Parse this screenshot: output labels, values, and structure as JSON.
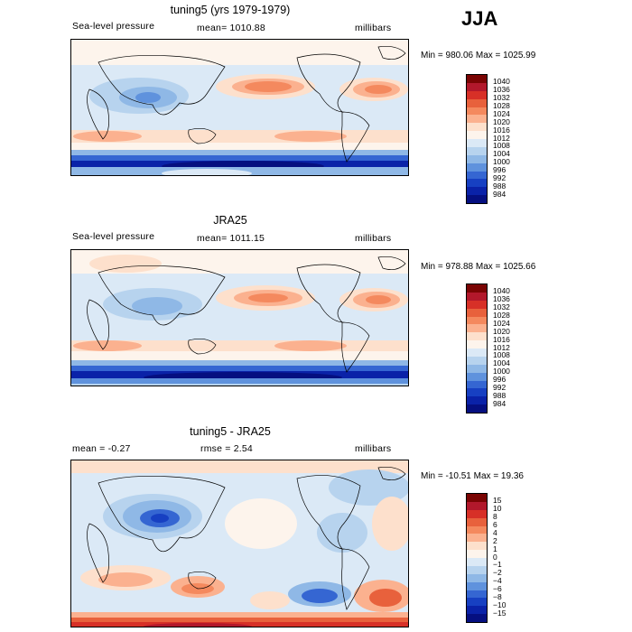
{
  "season": "JJA",
  "panels": [
    {
      "title": "tuning5 (yrs 1979-1979)",
      "sub_left": "Sea-level pressure",
      "sub_mid": "mean= 1010.88",
      "sub_right": "millibars",
      "minmax": "Min = 980.06 Max = 1025.99"
    },
    {
      "title": "JRA25",
      "sub_left": "Sea-level pressure",
      "sub_mid": "mean= 1011.15",
      "sub_right": "millibars",
      "minmax": "Min = 978.88 Max = 1025.66"
    },
    {
      "title": "tuning5 - JRA25",
      "sub_left": "mean =   -0.27",
      "sub_mid": "rmse =    2.54",
      "sub_right": "millibars",
      "minmax": "Min = -10.51 Max =  19.36"
    }
  ],
  "colorbar_abs": {
    "labels": [
      "1040",
      "1036",
      "1032",
      "1028",
      "1024",
      "1020",
      "1016",
      "1012",
      "1008",
      "1004",
      "1000",
      "996",
      "992",
      "988",
      "984"
    ],
    "colors": [
      "#7a0403",
      "#b2182b",
      "#d73027",
      "#e8613c",
      "#f4895e",
      "#fbb18f",
      "#fde0cc",
      "#fdf4ec",
      "#dbe9f6",
      "#b7d3ee",
      "#8fb8e6",
      "#5f92dd",
      "#3566d2",
      "#1740c2",
      "#0a22a8",
      "#050f80"
    ]
  },
  "colorbar_diff": {
    "labels": [
      "15",
      "10",
      "8",
      "6",
      "4",
      "2",
      "1",
      "0",
      "−1",
      "−2",
      "−4",
      "−6",
      "−8",
      "−10",
      "−15"
    ],
    "colors": [
      "#7a0403",
      "#b2182b",
      "#d73027",
      "#e8613c",
      "#f4895e",
      "#fbb18f",
      "#fde0cc",
      "#fdf4ec",
      "#dbe9f6",
      "#b7d3ee",
      "#8fb8e6",
      "#5f92dd",
      "#3566d2",
      "#1740c2",
      "#0a22a8",
      "#050f80"
    ]
  }
}
